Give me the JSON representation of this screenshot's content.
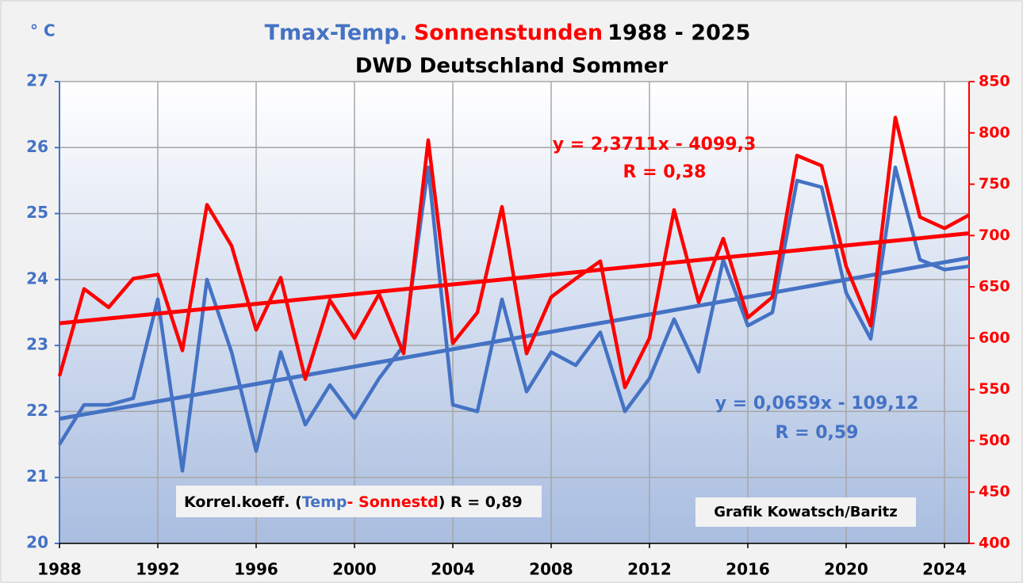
{
  "chart_data": {
    "type": "line",
    "title": "1988 - 2025",
    "subtitle": "DWD Deutschland Sommer",
    "y_unit_label": "° C",
    "x": [
      1988,
      1989,
      1990,
      1991,
      1992,
      1993,
      1994,
      1995,
      1996,
      1997,
      1998,
      1999,
      2000,
      2001,
      2002,
      2003,
      2004,
      2005,
      2006,
      2007,
      2008,
      2009,
      2010,
      2011,
      2012,
      2013,
      2014,
      2015,
      2016,
      2017,
      2018,
      2019,
      2020,
      2021,
      2022,
      2023,
      2024,
      2025
    ],
    "xlim": [
      1988,
      2025
    ],
    "xticks": [
      1988,
      1992,
      1996,
      2000,
      2004,
      2008,
      2012,
      2016,
      2020,
      2024
    ],
    "ylim": [
      20,
      27
    ],
    "yticks": [
      20,
      21,
      22,
      23,
      24,
      25,
      26,
      27
    ],
    "y2lim": [
      400,
      850
    ],
    "y2ticks": [
      400,
      450,
      500,
      550,
      600,
      650,
      700,
      750,
      800,
      850
    ],
    "grid": true,
    "series": [
      {
        "name": "Tmax-Temp.",
        "color": "#4472c4",
        "axis": "y",
        "values": [
          21.5,
          22.1,
          22.1,
          22.2,
          23.7,
          21.1,
          24.0,
          22.9,
          21.4,
          22.9,
          21.8,
          22.4,
          21.9,
          22.5,
          23.0,
          25.7,
          22.1,
          22.0,
          23.7,
          22.3,
          22.9,
          22.7,
          23.2,
          22.0,
          22.5,
          23.4,
          22.6,
          24.3,
          23.3,
          23.5,
          25.5,
          25.4,
          23.8,
          23.1,
          25.7,
          24.3,
          24.15,
          24.2
        ],
        "trend": {
          "slope": 0.0659,
          "intercept": -109.12,
          "label": "y = 0,0659x - 109,12",
          "r_label": "R = 0,59"
        }
      },
      {
        "name": "Sonnenstunden",
        "color": "#ff0000",
        "axis": "y2",
        "values": [
          563,
          648,
          630,
          658,
          662,
          588,
          730,
          690,
          608,
          659,
          560,
          637,
          600,
          643,
          585,
          793,
          595,
          625,
          728,
          585,
          640,
          658,
          675,
          552,
          600,
          725,
          635,
          697,
          620,
          640,
          778,
          768,
          670,
          612,
          815,
          718,
          707,
          720
        ],
        "trend": {
          "slope": 2.3711,
          "intercept": -4099.3,
          "label": "y = 2,3711x - 4099,3",
          "r_label": "R = 0,38"
        }
      }
    ],
    "annotations": [
      {
        "parts": [
          "Korrel.koeff. (",
          "Temp",
          "- ",
          "Sonnestd",
          ") R = 0,89"
        ]
      },
      {
        "parts": [
          "Grafik Kowatsch/Baritz"
        ]
      }
    ]
  }
}
